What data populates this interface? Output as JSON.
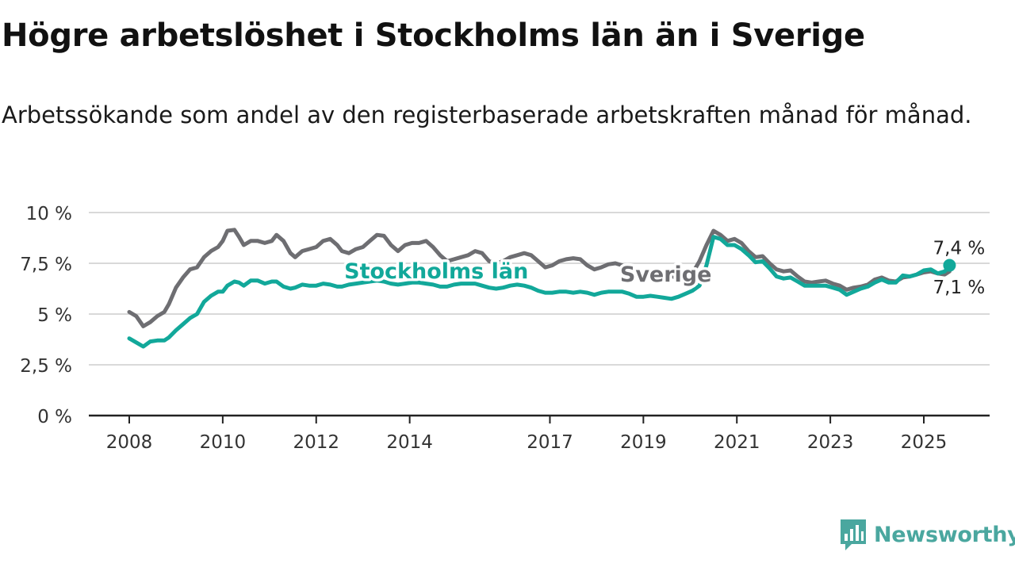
{
  "title": "Högre arbetslöshet i Stockholms län än i Sverige",
  "subtitle": "Arbetssökande som andel av den registerbaserade arbetskraften månad för månad.",
  "brand": {
    "name": "Newsworthy",
    "color": "#4aa79f",
    "icon": "bar-chart-speech-bubble-icon"
  },
  "colors": {
    "stockholm": "#12a89a",
    "sverige": "#6e6e72",
    "grid": "#d9d9d9",
    "axis": "#222222"
  },
  "chart_data": {
    "type": "line",
    "title": "Högre arbetslöshet i Stockholms län än i Sverige",
    "subtitle": "Arbetssökande som andel av den registerbaserade arbetskraften månad för månad.",
    "xlabel": "",
    "ylabel": "",
    "x_range": [
      2007.75,
      2026.5
    ],
    "ylim": [
      0,
      10
    ],
    "y_ticks": [
      0,
      2.5,
      5,
      7.5,
      10
    ],
    "y_tick_labels": [
      "0 %",
      "2,5 %",
      "5 %",
      "7,5 %",
      "10 %"
    ],
    "x_ticks": [
      2008,
      2010,
      2012,
      2014,
      2017,
      2019,
      2021,
      2023,
      2025
    ],
    "x_tick_labels": [
      "2008",
      "2010",
      "2012",
      "2014",
      "2017",
      "2019",
      "2021",
      "2023",
      "2025"
    ],
    "grid": "horizontal",
    "legend": "inline labels",
    "series": [
      {
        "name": "Sverige",
        "label_at": [
          2018.5,
          6.95
        ],
        "end_label": "7,1 %",
        "points": [
          [
            2008.0,
            5.1
          ],
          [
            2008.15,
            4.9
          ],
          [
            2008.3,
            4.4
          ],
          [
            2008.45,
            4.6
          ],
          [
            2008.6,
            4.9
          ],
          [
            2008.75,
            5.1
          ],
          [
            2008.85,
            5.5
          ],
          [
            2009.0,
            6.3
          ],
          [
            2009.15,
            6.8
          ],
          [
            2009.3,
            7.2
          ],
          [
            2009.45,
            7.3
          ],
          [
            2009.6,
            7.8
          ],
          [
            2009.75,
            8.1
          ],
          [
            2009.9,
            8.3
          ],
          [
            2010.0,
            8.6
          ],
          [
            2010.1,
            9.1
          ],
          [
            2010.25,
            9.15
          ],
          [
            2010.35,
            8.8
          ],
          [
            2010.45,
            8.4
          ],
          [
            2010.6,
            8.6
          ],
          [
            2010.75,
            8.6
          ],
          [
            2010.9,
            8.5
          ],
          [
            2011.05,
            8.6
          ],
          [
            2011.15,
            8.9
          ],
          [
            2011.3,
            8.6
          ],
          [
            2011.45,
            8.0
          ],
          [
            2011.55,
            7.8
          ],
          [
            2011.7,
            8.1
          ],
          [
            2011.85,
            8.2
          ],
          [
            2012.0,
            8.3
          ],
          [
            2012.15,
            8.6
          ],
          [
            2012.3,
            8.7
          ],
          [
            2012.45,
            8.4
          ],
          [
            2012.55,
            8.1
          ],
          [
            2012.7,
            8.0
          ],
          [
            2012.85,
            8.2
          ],
          [
            2013.0,
            8.3
          ],
          [
            2013.15,
            8.6
          ],
          [
            2013.3,
            8.9
          ],
          [
            2013.45,
            8.85
          ],
          [
            2013.6,
            8.4
          ],
          [
            2013.75,
            8.1
          ],
          [
            2013.9,
            8.4
          ],
          [
            2014.05,
            8.5
          ],
          [
            2014.2,
            8.5
          ],
          [
            2014.35,
            8.6
          ],
          [
            2014.5,
            8.3
          ],
          [
            2014.65,
            7.9
          ],
          [
            2014.8,
            7.6
          ],
          [
            2014.95,
            7.7
          ],
          [
            2015.1,
            7.8
          ],
          [
            2015.25,
            7.9
          ],
          [
            2015.4,
            8.1
          ],
          [
            2015.55,
            8.0
          ],
          [
            2015.7,
            7.6
          ],
          [
            2015.85,
            7.5
          ],
          [
            2016.0,
            7.6
          ],
          [
            2016.15,
            7.8
          ],
          [
            2016.3,
            7.9
          ],
          [
            2016.45,
            8.0
          ],
          [
            2016.6,
            7.9
          ],
          [
            2016.75,
            7.6
          ],
          [
            2016.9,
            7.3
          ],
          [
            2017.05,
            7.4
          ],
          [
            2017.2,
            7.6
          ],
          [
            2017.35,
            7.7
          ],
          [
            2017.5,
            7.75
          ],
          [
            2017.65,
            7.7
          ],
          [
            2017.8,
            7.4
          ],
          [
            2017.95,
            7.2
          ],
          [
            2018.1,
            7.3
          ],
          [
            2018.25,
            7.45
          ],
          [
            2018.4,
            7.5
          ],
          [
            2018.55,
            7.4
          ],
          [
            2018.7,
            7.2
          ],
          [
            2018.85,
            6.9
          ],
          [
            2019.0,
            6.9
          ],
          [
            2019.15,
            7.0
          ],
          [
            2019.3,
            7.1
          ],
          [
            2019.45,
            7.05
          ],
          [
            2019.6,
            6.9
          ],
          [
            2019.75,
            6.7
          ],
          [
            2019.9,
            6.8
          ],
          [
            2020.05,
            7.0
          ],
          [
            2020.2,
            7.6
          ],
          [
            2020.35,
            8.4
          ],
          [
            2020.5,
            9.1
          ],
          [
            2020.65,
            8.9
          ],
          [
            2020.8,
            8.6
          ],
          [
            2020.95,
            8.7
          ],
          [
            2021.1,
            8.5
          ],
          [
            2021.25,
            8.1
          ],
          [
            2021.4,
            7.8
          ],
          [
            2021.55,
            7.85
          ],
          [
            2021.7,
            7.5
          ],
          [
            2021.85,
            7.2
          ],
          [
            2022.0,
            7.1
          ],
          [
            2022.15,
            7.15
          ],
          [
            2022.3,
            6.85
          ],
          [
            2022.45,
            6.6
          ],
          [
            2022.6,
            6.55
          ],
          [
            2022.75,
            6.6
          ],
          [
            2022.9,
            6.65
          ],
          [
            2023.05,
            6.5
          ],
          [
            2023.2,
            6.4
          ],
          [
            2023.35,
            6.2
          ],
          [
            2023.5,
            6.3
          ],
          [
            2023.65,
            6.35
          ],
          [
            2023.8,
            6.45
          ],
          [
            2023.95,
            6.7
          ],
          [
            2024.1,
            6.8
          ],
          [
            2024.25,
            6.65
          ],
          [
            2024.4,
            6.6
          ],
          [
            2024.55,
            6.8
          ],
          [
            2024.7,
            6.85
          ],
          [
            2024.85,
            6.95
          ],
          [
            2025.0,
            7.05
          ],
          [
            2025.15,
            7.1
          ],
          [
            2025.3,
            7.0
          ],
          [
            2025.45,
            6.95
          ],
          [
            2025.55,
            7.1
          ]
        ]
      },
      {
        "name": "Stockholms län",
        "label_at": [
          2012.6,
          7.1
        ],
        "end_label": "7,4 %",
        "points": [
          [
            2008.0,
            3.8
          ],
          [
            2008.15,
            3.6
          ],
          [
            2008.3,
            3.4
          ],
          [
            2008.45,
            3.65
          ],
          [
            2008.6,
            3.7
          ],
          [
            2008.75,
            3.7
          ],
          [
            2008.85,
            3.85
          ],
          [
            2009.0,
            4.2
          ],
          [
            2009.15,
            4.5
          ],
          [
            2009.3,
            4.8
          ],
          [
            2009.45,
            5.0
          ],
          [
            2009.6,
            5.6
          ],
          [
            2009.75,
            5.9
          ],
          [
            2009.9,
            6.1
          ],
          [
            2010.0,
            6.1
          ],
          [
            2010.1,
            6.4
          ],
          [
            2010.25,
            6.6
          ],
          [
            2010.35,
            6.55
          ],
          [
            2010.45,
            6.4
          ],
          [
            2010.6,
            6.65
          ],
          [
            2010.75,
            6.65
          ],
          [
            2010.9,
            6.5
          ],
          [
            2011.05,
            6.6
          ],
          [
            2011.15,
            6.6
          ],
          [
            2011.3,
            6.35
          ],
          [
            2011.45,
            6.25
          ],
          [
            2011.55,
            6.3
          ],
          [
            2011.7,
            6.45
          ],
          [
            2011.85,
            6.4
          ],
          [
            2012.0,
            6.4
          ],
          [
            2012.15,
            6.5
          ],
          [
            2012.3,
            6.45
          ],
          [
            2012.45,
            6.35
          ],
          [
            2012.55,
            6.35
          ],
          [
            2012.7,
            6.45
          ],
          [
            2012.85,
            6.5
          ],
          [
            2013.0,
            6.55
          ],
          [
            2013.15,
            6.6
          ],
          [
            2013.3,
            6.65
          ],
          [
            2013.45,
            6.6
          ],
          [
            2013.6,
            6.5
          ],
          [
            2013.75,
            6.45
          ],
          [
            2013.9,
            6.5
          ],
          [
            2014.05,
            6.55
          ],
          [
            2014.2,
            6.55
          ],
          [
            2014.35,
            6.5
          ],
          [
            2014.5,
            6.45
          ],
          [
            2014.65,
            6.35
          ],
          [
            2014.8,
            6.35
          ],
          [
            2014.95,
            6.45
          ],
          [
            2015.1,
            6.5
          ],
          [
            2015.25,
            6.5
          ],
          [
            2015.4,
            6.5
          ],
          [
            2015.55,
            6.4
          ],
          [
            2015.7,
            6.3
          ],
          [
            2015.85,
            6.25
          ],
          [
            2016.0,
            6.3
          ],
          [
            2016.15,
            6.4
          ],
          [
            2016.3,
            6.45
          ],
          [
            2016.45,
            6.4
          ],
          [
            2016.6,
            6.3
          ],
          [
            2016.75,
            6.15
          ],
          [
            2016.9,
            6.05
          ],
          [
            2017.05,
            6.05
          ],
          [
            2017.2,
            6.1
          ],
          [
            2017.35,
            6.1
          ],
          [
            2017.5,
            6.05
          ],
          [
            2017.65,
            6.1
          ],
          [
            2017.8,
            6.05
          ],
          [
            2017.95,
            5.95
          ],
          [
            2018.1,
            6.05
          ],
          [
            2018.25,
            6.1
          ],
          [
            2018.4,
            6.1
          ],
          [
            2018.55,
            6.1
          ],
          [
            2018.7,
            6.0
          ],
          [
            2018.85,
            5.85
          ],
          [
            2019.0,
            5.85
          ],
          [
            2019.15,
            5.9
          ],
          [
            2019.3,
            5.85
          ],
          [
            2019.45,
            5.8
          ],
          [
            2019.6,
            5.75
          ],
          [
            2019.75,
            5.85
          ],
          [
            2019.9,
            6.0
          ],
          [
            2020.05,
            6.15
          ],
          [
            2020.2,
            6.4
          ],
          [
            2020.35,
            7.4
          ],
          [
            2020.5,
            8.8
          ],
          [
            2020.65,
            8.7
          ],
          [
            2020.8,
            8.4
          ],
          [
            2020.95,
            8.4
          ],
          [
            2021.1,
            8.2
          ],
          [
            2021.25,
            7.9
          ],
          [
            2021.4,
            7.55
          ],
          [
            2021.55,
            7.6
          ],
          [
            2021.7,
            7.25
          ],
          [
            2021.85,
            6.85
          ],
          [
            2022.0,
            6.75
          ],
          [
            2022.15,
            6.8
          ],
          [
            2022.3,
            6.6
          ],
          [
            2022.45,
            6.4
          ],
          [
            2022.6,
            6.4
          ],
          [
            2022.75,
            6.4
          ],
          [
            2022.9,
            6.4
          ],
          [
            2023.05,
            6.3
          ],
          [
            2023.2,
            6.2
          ],
          [
            2023.35,
            5.95
          ],
          [
            2023.5,
            6.1
          ],
          [
            2023.65,
            6.25
          ],
          [
            2023.8,
            6.35
          ],
          [
            2023.95,
            6.55
          ],
          [
            2024.1,
            6.7
          ],
          [
            2024.25,
            6.55
          ],
          [
            2024.4,
            6.55
          ],
          [
            2024.55,
            6.9
          ],
          [
            2024.7,
            6.85
          ],
          [
            2024.85,
            6.95
          ],
          [
            2025.0,
            7.15
          ],
          [
            2025.15,
            7.2
          ],
          [
            2025.3,
            7.0
          ],
          [
            2025.45,
            7.1
          ],
          [
            2025.55,
            7.4
          ]
        ]
      }
    ]
  }
}
